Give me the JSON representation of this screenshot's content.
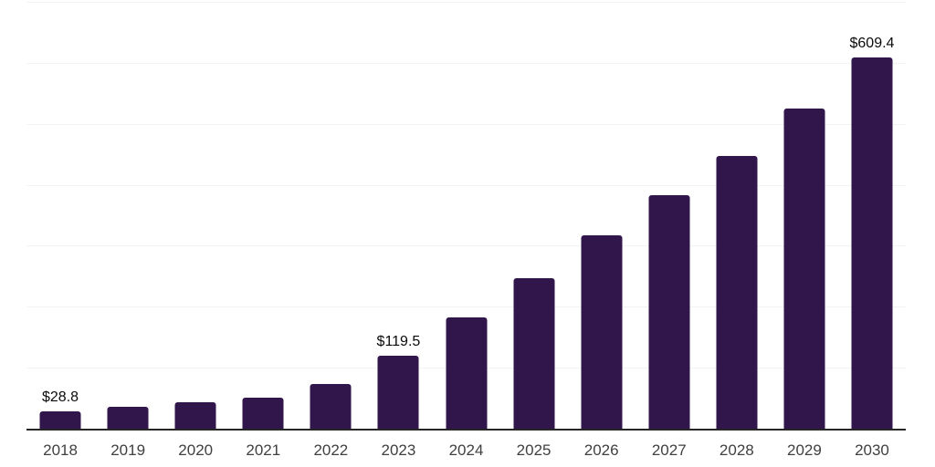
{
  "chart_data": {
    "type": "bar",
    "title": "",
    "xlabel": "",
    "ylabel": "",
    "categories": [
      "2018",
      "2019",
      "2020",
      "2021",
      "2022",
      "2023",
      "2024",
      "2025",
      "2026",
      "2027",
      "2028",
      "2029",
      "2030"
    ],
    "values": [
      28.8,
      36.5,
      43.4,
      50.7,
      73.2,
      119.5,
      182.2,
      246.4,
      316.4,
      382.2,
      447.9,
      525.4,
      609.4
    ],
    "labeled_points": [
      {
        "index": 0,
        "label": "$28.8"
      },
      {
        "index": 5,
        "label": "$119.5"
      },
      {
        "index": 12,
        "label": "$609.4"
      }
    ],
    "value_prefix": "$",
    "ylim": [
      0,
      700
    ],
    "gridline_values": [
      100,
      200,
      300,
      400,
      500,
      600,
      700
    ],
    "grid": true,
    "legend": false,
    "y_tick_labels_visible": false,
    "colors": {
      "bar": "#31164B",
      "axis_line": "#262626",
      "gridline": "#F3F3F3",
      "tick_label": "#404040",
      "data_label": "#0A0A0A",
      "background": "#FFFFFF"
    }
  }
}
